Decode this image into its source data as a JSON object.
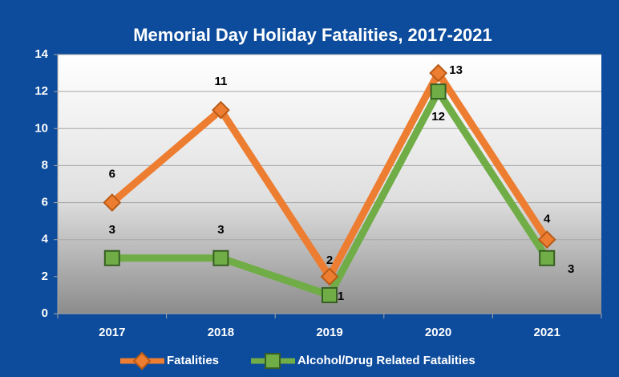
{
  "chart_data": {
    "type": "line",
    "title": "Memorial Day Holiday Fatalities, 2017-2021",
    "categories": [
      "2017",
      "2018",
      "2019",
      "2020",
      "2021"
    ],
    "series": [
      {
        "name": "Fatalities",
        "color": "#ed7d31",
        "values": [
          6,
          11,
          2,
          13,
          4
        ]
      },
      {
        "name": "Alcohol/Drug Related Fatalities",
        "color": "#70ad47",
        "values": [
          3,
          3,
          1,
          12,
          3
        ]
      }
    ],
    "ylim": [
      0,
      14
    ],
    "yticks": [
      0,
      2,
      4,
      6,
      8,
      10,
      12,
      14
    ],
    "grid": true,
    "legend": "bottom"
  }
}
